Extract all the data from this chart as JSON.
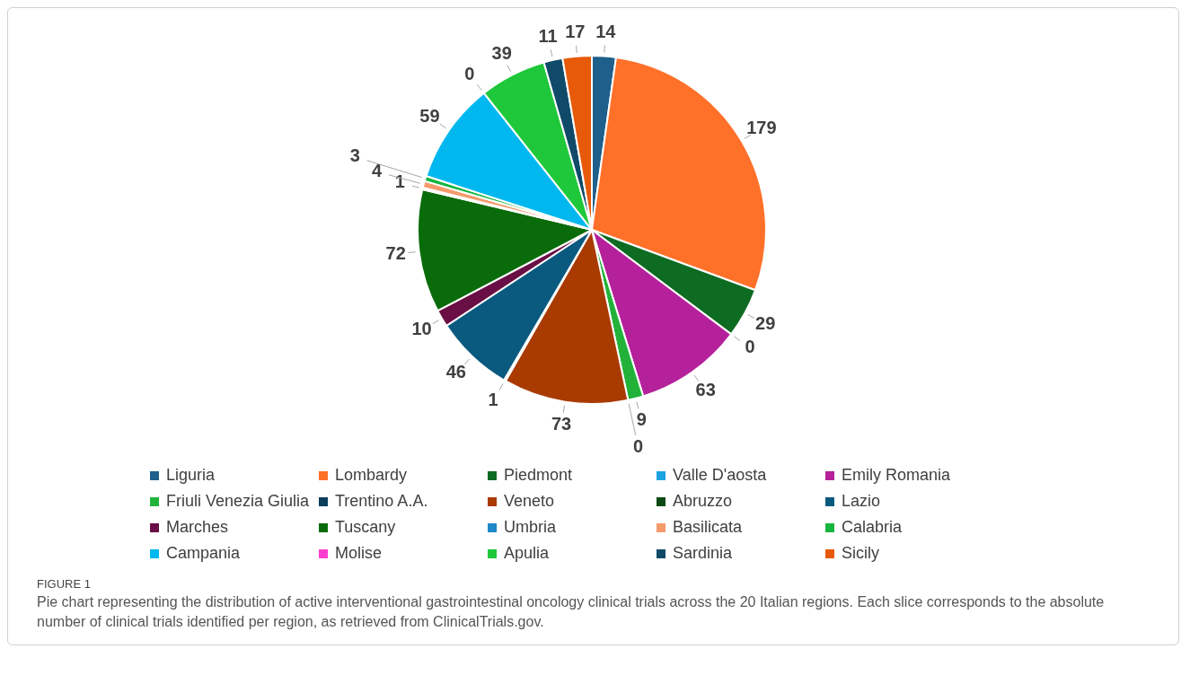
{
  "chart_data": {
    "type": "pie",
    "categories": [
      "Liguria",
      "Lombardy",
      "Piedmont",
      "Valle D'aosta",
      "Emily Romania",
      "Friuli Venezia Giulia",
      "Trentino A.A.",
      "Veneto",
      "Abruzzo",
      "Lazio",
      "Marches",
      "Tuscany",
      "Umbria",
      "Basilicata",
      "Calabria",
      "Campania",
      "Molise",
      "Apulia",
      "Sardinia",
      "Sicily"
    ],
    "values": [
      14,
      179,
      29,
      0,
      63,
      9,
      0,
      73,
      1,
      46,
      10,
      72,
      1,
      4,
      3,
      59,
      0,
      39,
      11,
      17
    ],
    "colors": [
      "#1f5f8b",
      "#ff7029",
      "#0e6b22",
      "#1aa3e0",
      "#b5219a",
      "#22b23a",
      "#0b3d5c",
      "#a93a00",
      "#0b4a12",
      "#0a5a80",
      "#6a0f45",
      "#0a6b0a",
      "#1e88c8",
      "#f59a6a",
      "#16b540",
      "#00b8ef",
      "#ff3fcf",
      "#1ec83a",
      "#0f4a68",
      "#e65a0a"
    ],
    "value_labels": [
      "14",
      "179",
      "29",
      "0",
      "63",
      "9",
      "0",
      "73",
      "1",
      "46",
      "10",
      "72",
      "1",
      "4",
      "3",
      "59",
      "0",
      "39",
      "11",
      "17"
    ],
    "legend": "bottom",
    "annotations": [
      "FIGURE 1",
      "Pie chart representing the distribution of active interventional gastrointestinal oncology clinical trials across the 20 Italian regions. Each slice corresponds to the absolute number of clinical trials identified per region, as retrieved from ClinicalTrials.gov."
    ]
  }
}
